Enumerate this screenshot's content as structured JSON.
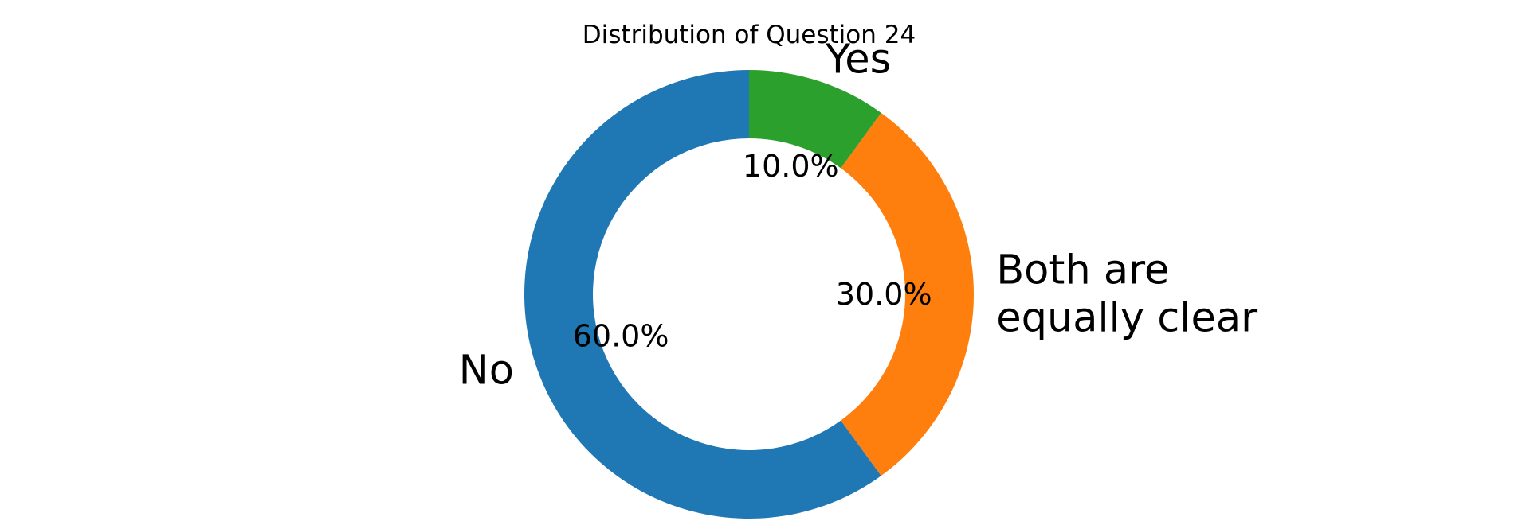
{
  "chart_data": {
    "type": "pie",
    "style": "donut",
    "title": "Distribution of Question 24",
    "start_angle_deg": 90,
    "direction": "counterclockwise",
    "legend": "none",
    "slices": [
      {
        "label": "No",
        "value": 60.0,
        "percent_label": "60.0%",
        "color": "#1f77b4"
      },
      {
        "label": "Both are equally clear",
        "label_lines": [
          "Both are",
          "equally clear"
        ],
        "value": 30.0,
        "percent_label": "30.0%",
        "color": "#ff7f0e"
      },
      {
        "label": "Yes",
        "value": 10.0,
        "percent_label": "10.0%",
        "color": "#2ca02c"
      }
    ]
  }
}
